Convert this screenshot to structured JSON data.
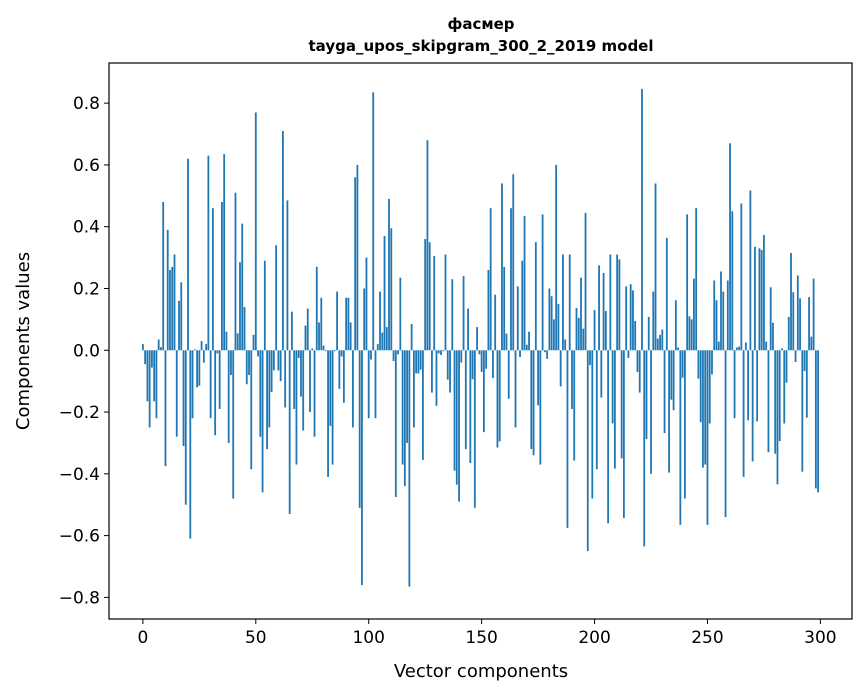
{
  "chart_data": {
    "type": "bar",
    "title": "фасмер",
    "subtitle": "tayga_upos_skipgram_300_2_2019 model",
    "xlabel": "Vector components",
    "ylabel": "Components values",
    "xlim": [
      -15,
      314
    ],
    "ylim": [
      -0.87,
      0.93
    ],
    "xticks": [
      0,
      50,
      100,
      150,
      200,
      250,
      300
    ],
    "xtick_labels": [
      "0",
      "50",
      "100",
      "150",
      "200",
      "250",
      "300"
    ],
    "yticks": [
      -0.8,
      -0.6,
      -0.4,
      -0.2,
      0.0,
      0.2,
      0.4,
      0.6,
      0.8
    ],
    "ytick_labels": [
      "−0.8",
      "−0.6",
      "−0.4",
      "−0.2",
      "0.0",
      "0.2",
      "0.4",
      "0.6",
      "0.8"
    ],
    "grid": false,
    "bar_color": "#1f77b4",
    "values": [
      0.02,
      -0.045,
      -0.165,
      -0.25,
      -0.056,
      -0.165,
      -0.22,
      0.035,
      0.01,
      0.48,
      -0.375,
      0.39,
      0.26,
      0.27,
      0.31,
      -0.28,
      0.16,
      0.22,
      -0.31,
      -0.5,
      0.62,
      -0.61,
      -0.22,
      0.003,
      -0.12,
      -0.115,
      0.03,
      -0.04,
      0.02,
      0.63,
      -0.22,
      0.46,
      -0.275,
      -0.01,
      -0.19,
      0.48,
      0.635,
      0.06,
      -0.3,
      -0.08,
      -0.48,
      0.51,
      0.055,
      0.285,
      0.41,
      0.14,
      -0.11,
      -0.08,
      -0.385,
      0.05,
      0.77,
      -0.02,
      -0.28,
      -0.46,
      0.29,
      -0.32,
      -0.25,
      -0.135,
      -0.065,
      0.34,
      -0.065,
      -0.1,
      0.71,
      -0.185,
      0.485,
      -0.53,
      0.125,
      -0.19,
      -0.37,
      -0.025,
      -0.15,
      -0.26,
      0.08,
      0.135,
      -0.2,
      0.006,
      -0.28,
      0.27,
      0.09,
      0.17,
      0.015,
      -0.003,
      -0.41,
      -0.245,
      -0.37,
      -0.003,
      0.19,
      -0.125,
      -0.02,
      -0.17,
      0.17,
      0.17,
      0.09,
      -0.25,
      0.56,
      0.6,
      -0.51,
      -0.76,
      0.2,
      0.3,
      -0.22,
      -0.03,
      0.835,
      -0.22,
      0.02,
      0.19,
      0.057,
      0.37,
      0.075,
      0.49,
      0.395,
      -0.035,
      -0.475,
      -0.013,
      0.235,
      -0.37,
      -0.44,
      -0.3,
      -0.765,
      0.085,
      -0.25,
      -0.075,
      -0.075,
      -0.063,
      -0.355,
      0.36,
      0.68,
      0.35,
      -0.137,
      0.305,
      -0.18,
      -0.01,
      -0.015,
      -0.003,
      0.31,
      -0.095,
      -0.137,
      0.23,
      -0.39,
      -0.435,
      -0.49,
      -0.04,
      0.24,
      -0.32,
      0.135,
      -0.365,
      -0.094,
      -0.51,
      0.075,
      -0.013,
      -0.07,
      -0.265,
      -0.06,
      0.26,
      0.46,
      -0.09,
      0.18,
      -0.315,
      -0.295,
      0.54,
      0.27,
      0.054,
      -0.157,
      0.46,
      0.57,
      -0.25,
      0.207,
      -0.022,
      0.29,
      0.435,
      0.018,
      0.06,
      -0.32,
      -0.34,
      0.35,
      -0.178,
      -0.37,
      0.44,
      -0.006,
      -0.028,
      0.2,
      0.175,
      0.1,
      0.6,
      0.15,
      -0.117,
      0.31,
      0.035,
      -0.575,
      0.31,
      -0.19,
      -0.357,
      0.137,
      0.105,
      0.235,
      0.07,
      0.445,
      -0.65,
      -0.048,
      -0.48,
      0.13,
      -0.385,
      0.275,
      -0.153,
      0.25,
      0.127,
      -0.56,
      0.31,
      -0.237,
      -0.383,
      0.31,
      0.294,
      -0.35,
      -0.543,
      0.207,
      -0.025,
      0.214,
      0.194,
      0.095,
      -0.07,
      -0.137,
      0.846,
      -0.635,
      -0.287,
      0.108,
      -0.4,
      0.19,
      0.54,
      0.038,
      0.05,
      0.067,
      -0.268,
      0.364,
      -0.396,
      -0.16,
      -0.194,
      0.162,
      0.009,
      -0.565,
      -0.089,
      -0.48,
      0.44,
      0.11,
      0.1,
      0.232,
      0.46,
      -0.092,
      -0.233,
      -0.38,
      -0.37,
      -0.565,
      -0.237,
      -0.078,
      0.226,
      0.162,
      0.028,
      0.255,
      0.19,
      -0.54,
      0.226,
      0.67,
      0.45,
      -0.22,
      0.009,
      0.012,
      0.475,
      -0.41,
      0.025,
      -0.227,
      0.517,
      -0.36,
      0.335,
      -0.23,
      0.33,
      0.325,
      0.373,
      0.028,
      -0.33,
      0.204,
      0.089,
      -0.335,
      -0.434,
      -0.294,
      0.006,
      -0.237,
      -0.105,
      0.108,
      0.315,
      0.188,
      -0.038,
      0.242,
      0.168,
      -0.393,
      -0.067,
      -0.218,
      0.172,
      0.044,
      0.232,
      -0.447,
      -0.46
    ]
  }
}
